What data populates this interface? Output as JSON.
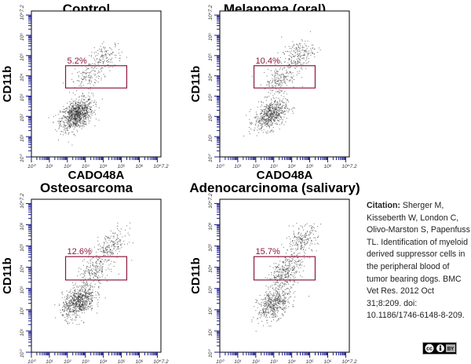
{
  "panels": [
    {
      "title": "Control",
      "gate_pct": "5.2%"
    },
    {
      "title": "Melanoma (oral)",
      "gate_pct": "10.4%"
    },
    {
      "title": "Osteosarcoma",
      "gate_pct": "12.6%"
    },
    {
      "title": "Adenocarcinoma (salivary)",
      "gate_pct": "15.7%"
    }
  ],
  "axis": {
    "x_label": "CADO48A",
    "y_label": "CD11b",
    "tick_labels": [
      "10⁰",
      "10¹",
      "10²",
      "10³",
      "10⁴",
      "10⁵",
      "10⁶",
      "10^7.2"
    ]
  },
  "citation": {
    "label": "Citation:",
    "text": "Sherger M, Kisseberth W, London C, Olivo-Marston S, Papenfuss TL. Identification of myeloid derived suppressor cells in the peripheral blood of tumor bearing dogs. BMC Vet Res. 2012 Oct 31;8:209. doi: 10.1186/1746-6148-8-209."
  },
  "license_badge": "cc-by",
  "colors": {
    "dots": "#222222",
    "gate": "#8b1a3a",
    "ticks": "#1a1a8c"
  },
  "chart_data": [
    {
      "type": "scatter",
      "title": "Control",
      "xlabel": "CADO48A",
      "ylabel": "CD11b",
      "scale": "log",
      "xlim": [
        0,
        7.2
      ],
      "ylim": [
        0,
        7.2
      ],
      "gate_label": "5.2%",
      "clusters": [
        {
          "x": 2.5,
          "y": 2.1,
          "n": 900
        },
        {
          "x": 3.1,
          "y": 4.0,
          "n": 120
        },
        {
          "x": 4.1,
          "y": 4.9,
          "n": 140
        }
      ],
      "gate": {
        "x": [
          1.9,
          5.3
        ],
        "y": [
          3.4,
          4.5
        ]
      }
    },
    {
      "type": "scatter",
      "title": "Melanoma (oral)",
      "xlabel": "CADO48A",
      "ylabel": "CD11b",
      "scale": "log",
      "xlim": [
        0,
        7.2
      ],
      "ylim": [
        0,
        7.2
      ],
      "gate_label": "10.4%",
      "clusters": [
        {
          "x": 2.8,
          "y": 2.1,
          "n": 600
        },
        {
          "x": 3.3,
          "y": 3.8,
          "n": 180
        },
        {
          "x": 4.3,
          "y": 5.0,
          "n": 220
        }
      ],
      "gate": {
        "x": [
          1.9,
          5.3
        ],
        "y": [
          3.4,
          4.5
        ]
      }
    },
    {
      "type": "scatter",
      "title": "Osteosarcoma",
      "xlabel": "CADO48A",
      "ylabel": "CD11b",
      "scale": "log",
      "xlim": [
        0,
        7.2
      ],
      "ylim": [
        0,
        7.2
      ],
      "gate_label": "12.6%",
      "clusters": [
        {
          "x": 2.6,
          "y": 2.4,
          "n": 700
        },
        {
          "x": 3.4,
          "y": 3.8,
          "n": 200
        },
        {
          "x": 4.4,
          "y": 5.0,
          "n": 200
        }
      ],
      "gate": {
        "x": [
          1.9,
          5.3
        ],
        "y": [
          3.4,
          4.5
        ]
      }
    },
    {
      "type": "scatter",
      "title": "Adenocarcinoma (salivary)",
      "xlabel": "CADO48A",
      "ylabel": "CD11b",
      "scale": "log",
      "xlim": [
        0,
        7.2
      ],
      "ylim": [
        0,
        7.2
      ],
      "gate_label": "15.7%",
      "clusters": [
        {
          "x": 3.0,
          "y": 2.3,
          "n": 500
        },
        {
          "x": 3.6,
          "y": 3.8,
          "n": 300
        },
        {
          "x": 4.5,
          "y": 5.2,
          "n": 220
        }
      ],
      "gate": {
        "x": [
          1.9,
          5.3
        ],
        "y": [
          3.4,
          4.5
        ]
      }
    }
  ]
}
